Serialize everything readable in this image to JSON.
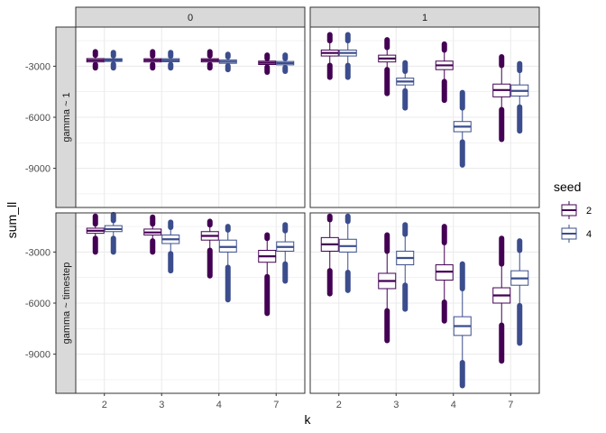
{
  "chart_data": {
    "type": "boxplot",
    "xlabel": "k",
    "ylabel": "sum_ll",
    "categories": [
      "2",
      "3",
      "4",
      "7"
    ],
    "ylim": [
      -11300,
      -700
    ],
    "yticks": [
      -3000,
      -6000,
      -9000
    ],
    "ytick_labels": [
      "-3000",
      "-6000",
      "-9000"
    ],
    "grid": true,
    "legend": {
      "title": "seed",
      "position": "right",
      "entries": [
        {
          "label": "2",
          "color": "#440154"
        },
        {
          "label": "4",
          "color": "#3b4d8c"
        }
      ]
    },
    "col_strips": [
      "0",
      "1"
    ],
    "row_strips": [
      "gamma ~ 1",
      "gamma ~ timestep"
    ],
    "panels": [
      {
        "col": 0,
        "row": 0,
        "boxes": [
          {
            "k": "2",
            "seed": "2",
            "q1": -2750,
            "median": -2650,
            "q3": -2550,
            "wlo": -2900,
            "whi": -2350,
            "olo": [
              -2900,
              -3100
            ],
            "ohi": [
              -2350,
              -2150
            ]
          },
          {
            "k": "2",
            "seed": "4",
            "q1": -2720,
            "median": -2640,
            "q3": -2560,
            "wlo": -2880,
            "whi": -2380,
            "olo": [
              -2880,
              -3100
            ],
            "ohi": [
              -2380,
              -2200
            ]
          },
          {
            "k": "3",
            "seed": "2",
            "q1": -2750,
            "median": -2650,
            "q3": -2560,
            "wlo": -2900,
            "whi": -2380,
            "olo": [
              -2900,
              -3100
            ],
            "ohi": [
              -2380,
              -2150
            ]
          },
          {
            "k": "3",
            "seed": "4",
            "q1": -2740,
            "median": -2650,
            "q3": -2560,
            "wlo": -2900,
            "whi": -2400,
            "olo": [
              -2900,
              -3100
            ],
            "ohi": [
              -2400,
              -2200
            ]
          },
          {
            "k": "4",
            "seed": "2",
            "q1": -2750,
            "median": -2650,
            "q3": -2560,
            "wlo": -2900,
            "whi": -2380,
            "olo": [
              -2900,
              -3100
            ],
            "ohi": [
              -2380,
              -2150
            ]
          },
          {
            "k": "4",
            "seed": "4",
            "q1": -2830,
            "median": -2730,
            "q3": -2630,
            "wlo": -2980,
            "whi": -2450,
            "olo": [
              -2980,
              -3200
            ],
            "ohi": [
              -2450,
              -2300
            ]
          },
          {
            "k": "7",
            "seed": "2",
            "q1": -2900,
            "median": -2800,
            "q3": -2700,
            "wlo": -3050,
            "whi": -2550,
            "olo": [
              -3050,
              -3350
            ],
            "ohi": [
              -2550,
              -2350
            ]
          },
          {
            "k": "7",
            "seed": "4",
            "q1": -2920,
            "median": -2820,
            "q3": -2720,
            "wlo": -3080,
            "whi": -2550,
            "olo": [
              -3080,
              -3300
            ],
            "ohi": [
              -2550,
              -2350
            ]
          }
        ]
      },
      {
        "col": 1,
        "row": 0,
        "boxes": [
          {
            "k": "2",
            "seed": "2",
            "q1": -2400,
            "median": -2220,
            "q3": -2050,
            "wlo": -2950,
            "whi": -1500,
            "olo": [
              -2950,
              -3650
            ],
            "ohi": [
              -1500,
              -1150
            ]
          },
          {
            "k": "2",
            "seed": "4",
            "q1": -2400,
            "median": -2220,
            "q3": -2050,
            "wlo": -2950,
            "whi": -1500,
            "olo": [
              -2950,
              -3650
            ],
            "ohi": [
              -1500,
              -1150
            ]
          },
          {
            "k": "3",
            "seed": "2",
            "q1": -2750,
            "median": -2550,
            "q3": -2350,
            "wlo": -3200,
            "whi": -1900,
            "olo": [
              -3200,
              -4600
            ],
            "ohi": [
              -1900,
              -1450
            ]
          },
          {
            "k": "3",
            "seed": "4",
            "q1": -4100,
            "median": -3900,
            "q3": -3700,
            "wlo": -4450,
            "whi": -3300,
            "olo": [
              -4450,
              -5450
            ],
            "ohi": [
              -3300,
              -2800
            ]
          },
          {
            "k": "4",
            "seed": "2",
            "q1": -3200,
            "median": -2950,
            "q3": -2700,
            "wlo": -3900,
            "whi": -2050,
            "olo": [
              -3900,
              -5000
            ],
            "ohi": [
              -2050,
              -1700
            ]
          },
          {
            "k": "4",
            "seed": "4",
            "q1": -6850,
            "median": -6550,
            "q3": -6250,
            "wlo": -7450,
            "whi": -5450,
            "olo": [
              -7450,
              -8800
            ],
            "ohi": [
              -5450,
              -4550
            ]
          },
          {
            "k": "7",
            "seed": "2",
            "q1": -4800,
            "median": -4400,
            "q3": -4050,
            "wlo": -5550,
            "whi": -2950,
            "olo": [
              -5550,
              -7300
            ],
            "ohi": [
              -2950,
              -2450
            ]
          },
          {
            "k": "7",
            "seed": "4",
            "q1": -4750,
            "median": -4450,
            "q3": -4100,
            "wlo": -5400,
            "whi": -3250,
            "olo": [
              -5400,
              -6800
            ],
            "ohi": [
              -3250,
              -2850
            ]
          }
        ]
      },
      {
        "col": 0,
        "row": 1,
        "boxes": [
          {
            "k": "2",
            "seed": "2",
            "q1": -1900,
            "median": -1750,
            "q3": -1600,
            "wlo": -2200,
            "whi": -1350,
            "olo": [
              -2200,
              -3000
            ],
            "ohi": [
              -1350,
              -900
            ]
          },
          {
            "k": "2",
            "seed": "4",
            "q1": -1800,
            "median": -1650,
            "q3": -1450,
            "wlo": -2200,
            "whi": -1150,
            "olo": [
              -2200,
              -3000
            ],
            "ohi": [
              -1150,
              -800
            ]
          },
          {
            "k": "3",
            "seed": "2",
            "q1": -2000,
            "median": -1850,
            "q3": -1650,
            "wlo": -2350,
            "whi": -1350,
            "olo": [
              -2350,
              -3000
            ],
            "ohi": [
              -1350,
              -950
            ]
          },
          {
            "k": "3",
            "seed": "4",
            "q1": -2500,
            "median": -2250,
            "q3": -2000,
            "wlo": -3100,
            "whi": -1550,
            "olo": [
              -3100,
              -4100
            ],
            "ohi": [
              -1550,
              -1250
            ]
          },
          {
            "k": "4",
            "seed": "2",
            "q1": -2300,
            "median": -2050,
            "q3": -1800,
            "wlo": -2900,
            "whi": -1400,
            "olo": [
              -2900,
              -4400
            ],
            "ohi": [
              -1400,
              -1200
            ]
          },
          {
            "k": "4",
            "seed": "4",
            "q1": -3000,
            "median": -2700,
            "q3": -2300,
            "wlo": -3900,
            "whi": -1700,
            "olo": [
              -3900,
              -5800
            ],
            "ohi": [
              -1700,
              -1500
            ]
          },
          {
            "k": "7",
            "seed": "2",
            "q1": -3600,
            "median": -3250,
            "q3": -2900,
            "wlo": -4450,
            "whi": -2200,
            "olo": [
              -4450,
              -6600
            ],
            "ohi": [
              -2200,
              -2000
            ]
          },
          {
            "k": "7",
            "seed": "4",
            "q1": -2950,
            "median": -2700,
            "q3": -2400,
            "wlo": -3700,
            "whi": -1750,
            "olo": [
              -3700,
              -4700
            ],
            "ohi": [
              -1750,
              -1400
            ]
          }
        ]
      },
      {
        "col": 1,
        "row": 1,
        "boxes": [
          {
            "k": "2",
            "seed": "2",
            "q1": -2950,
            "median": -2550,
            "q3": -2150,
            "wlo": -4100,
            "whi": -1100,
            "olo": [
              -4100,
              -5450
            ],
            "ohi": [
              -1100,
              -900
            ]
          },
          {
            "k": "2",
            "seed": "4",
            "q1": -3000,
            "median": -2650,
            "q3": -2250,
            "wlo": -4200,
            "whi": -1200,
            "olo": [
              -4200,
              -5250
            ],
            "ohi": [
              -1200,
              -900
            ]
          },
          {
            "k": "3",
            "seed": "2",
            "q1": -5150,
            "median": -4700,
            "q3": -4250,
            "wlo": -6450,
            "whi": -2950,
            "olo": [
              -6450,
              -8200
            ],
            "ohi": [
              -2950,
              -2000
            ]
          },
          {
            "k": "3",
            "seed": "4",
            "q1": -3750,
            "median": -3350,
            "q3": -2950,
            "wlo": -4950,
            "whi": -1950,
            "olo": [
              -4950,
              -6350
            ],
            "ohi": [
              -1950,
              -1400
            ]
          },
          {
            "k": "4",
            "seed": "2",
            "q1": -4650,
            "median": -4150,
            "q3": -3750,
            "wlo": -5950,
            "whi": -2450,
            "olo": [
              -5950,
              -7050
            ],
            "ohi": [
              -2450,
              -1500
            ]
          },
          {
            "k": "4",
            "seed": "4",
            "q1": -7900,
            "median": -7350,
            "q3": -6800,
            "wlo": -9500,
            "whi": -5150,
            "olo": [
              -9500,
              -10850
            ],
            "ohi": [
              -5150,
              -3700
            ]
          },
          {
            "k": "7",
            "seed": "2",
            "q1": -6000,
            "median": -5550,
            "q3": -5100,
            "wlo": -7300,
            "whi": -3700,
            "olo": [
              -7300,
              -9400
            ],
            "ohi": [
              -3700,
              -2200
            ]
          },
          {
            "k": "7",
            "seed": "4",
            "q1": -4950,
            "median": -4550,
            "q3": -4100,
            "wlo": -6150,
            "whi": -2900,
            "olo": [
              -6150,
              -8350
            ],
            "ohi": [
              -2900,
              -2350
            ]
          }
        ]
      }
    ]
  }
}
